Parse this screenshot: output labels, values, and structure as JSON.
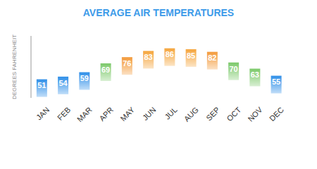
{
  "chart_data": {
    "type": "bar",
    "title": "AVERAGE AIR TEMPERATURES",
    "y_label": "DEGREES FAHRENHEIT",
    "categories": [
      "JAN",
      "FEB",
      "MAR",
      "APR",
      "MAY",
      "JUN",
      "JUL",
      "AUG",
      "SEP",
      "OCT",
      "NOV",
      "DEC"
    ],
    "values": [
      51,
      54,
      59,
      69,
      76,
      83,
      86,
      85,
      82,
      70,
      63,
      55
    ],
    "colors": [
      "#2f8fe8",
      "#2f8fe8",
      "#2f8fe8",
      "#7cc96a",
      "#f39a3a",
      "#f5a53c",
      "#f5a53c",
      "#f5a53c",
      "#f39a3a",
      "#7cc96a",
      "#7cc96a",
      "#2f8fe8"
    ],
    "ylim": [
      30,
      100
    ],
    "grid": false,
    "data_labels": true,
    "tick_labels": "x"
  }
}
